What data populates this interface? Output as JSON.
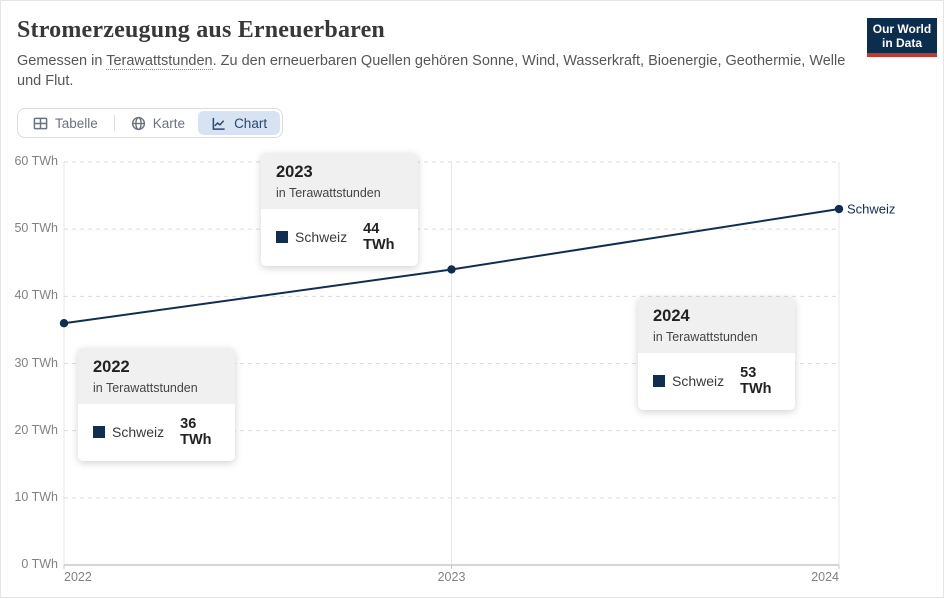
{
  "header": {
    "title": "Stromerzeugung aus Erneuerbaren",
    "subtitle_prefix": "Gemessen in ",
    "subtitle_term": "Terawattstunden",
    "subtitle_suffix": ". Zu den erneuerbaren Quellen gehören Sonne, Wind, Wasserkraft, Bioenergie, Geothermie, Welle und Flut.",
    "logo": {
      "line1": "Our World",
      "line2": "in Data"
    }
  },
  "tabs": [
    {
      "label": "Tabelle",
      "active": false
    },
    {
      "label": "Karte",
      "active": false
    },
    {
      "label": "Chart",
      "active": true
    }
  ],
  "chart_data": {
    "type": "line",
    "title": "Stromerzeugung aus Erneuerbaren",
    "unit": "TWh",
    "x": [
      2022,
      2023,
      2024
    ],
    "x_tick_labels": [
      "2022",
      "2023",
      "2024"
    ],
    "series": [
      {
        "name": "Schweiz",
        "values": [
          36,
          44,
          53
        ],
        "color": "#112e51"
      }
    ],
    "ylim": [
      0,
      60
    ],
    "y_ticks": [
      0,
      10,
      20,
      30,
      40,
      50,
      60
    ],
    "y_tick_labels": [
      "0 TWh",
      "10 TWh",
      "20 TWh",
      "30 TWh",
      "40 TWh",
      "50 TWh",
      "60 TWh"
    ],
    "grid": true,
    "legend_position": "end-of-line",
    "end_label": "Schweiz"
  },
  "tooltips": [
    {
      "year": "2022",
      "unit_line": "in Terawattstunden",
      "entity": "Schweiz",
      "value": "36 TWh"
    },
    {
      "year": "2023",
      "unit_line": "in Terawattstunden",
      "entity": "Schweiz",
      "value": "44 TWh"
    },
    {
      "year": "2024",
      "unit_line": "in Terawattstunden",
      "entity": "Schweiz",
      "value": "53 TWh"
    }
  ],
  "colors": {
    "accent_navy": "#112e51",
    "logo_bg": "#0c2d4d",
    "logo_bar_red": "#c5372c",
    "active_tab_bg": "#d7e3f2",
    "active_tab_text": "#29486e",
    "grid_dashed": "#dcdcdc",
    "grid_vertical": "#e7e7e7",
    "axis_line": "#c9c9c9",
    "tick_label": "#828282"
  }
}
